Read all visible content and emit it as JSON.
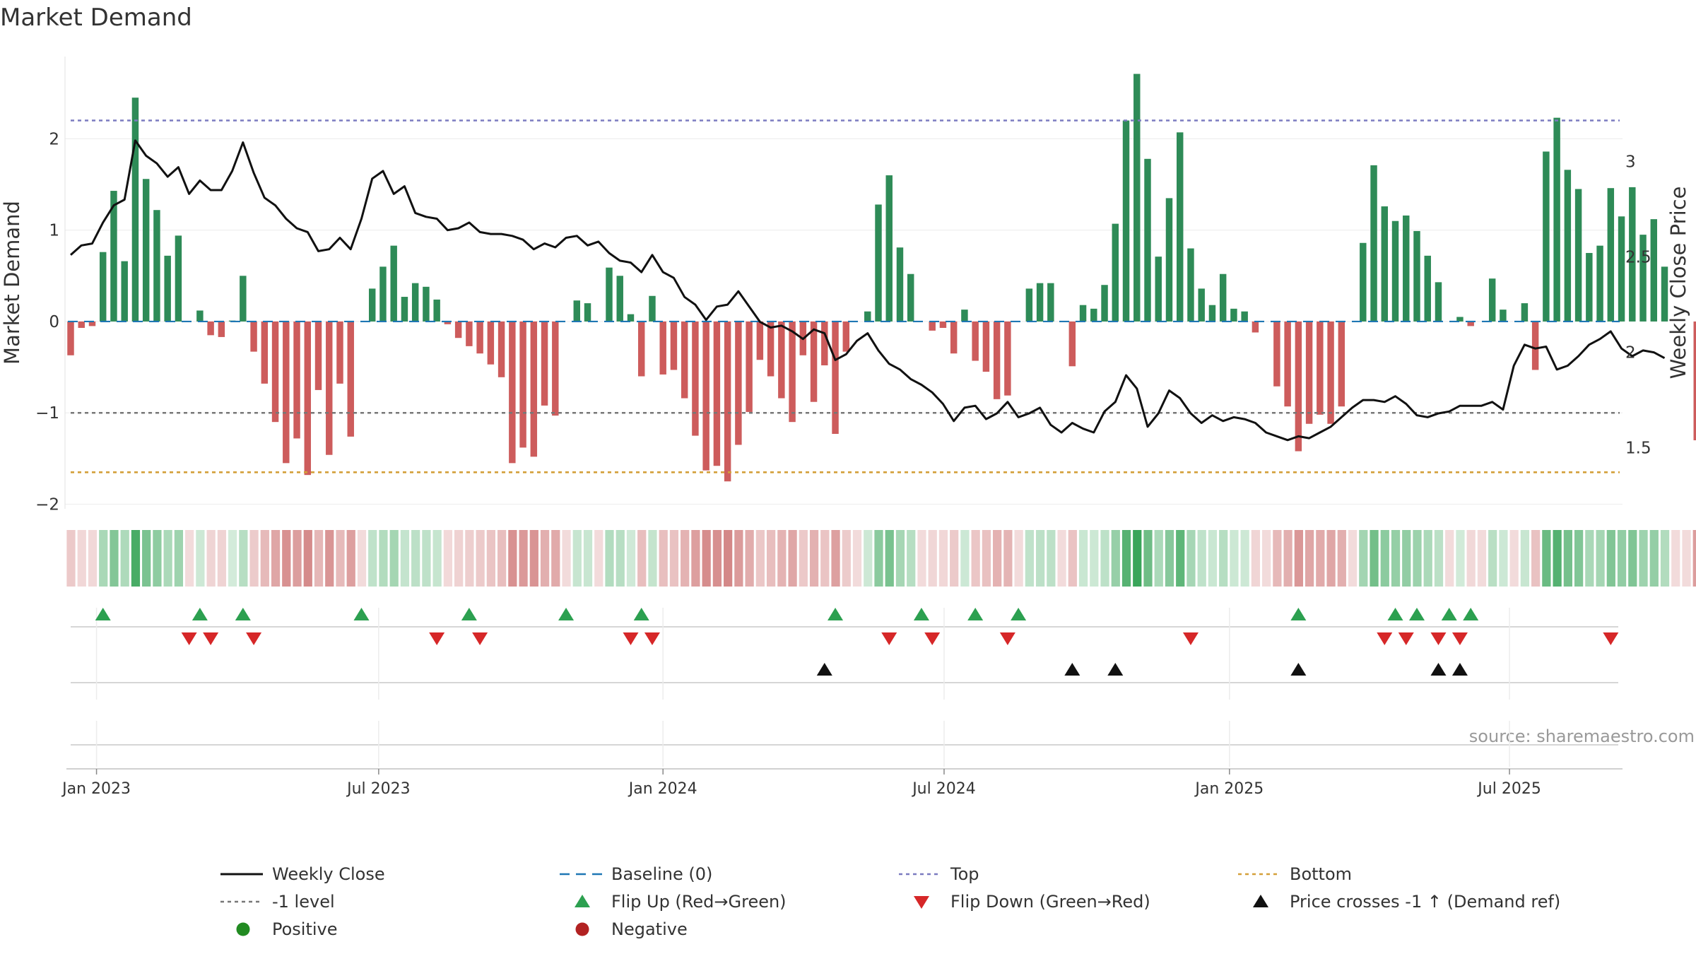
{
  "chart_data": {
    "type": "bar",
    "title": "Market Demand",
    "ylabel_left": "Market Demand",
    "ylabel_right": "Weekly Close Price",
    "ylim_left": [
      -2.05,
      2.9
    ],
    "ylim_right": [
      1.18,
      3.55
    ],
    "yticks_left": [
      {
        "v": 2,
        "label": "2"
      },
      {
        "v": 1,
        "label": "1"
      },
      {
        "v": 0,
        "label": "0"
      },
      {
        "v": -1,
        "label": "−1"
      },
      {
        "v": -2,
        "label": "−2"
      }
    ],
    "yticks_right": [
      {
        "v": 3,
        "label": "3"
      },
      {
        "v": 2.5,
        "label": "2.5"
      },
      {
        "v": 2,
        "label": "2"
      },
      {
        "v": 1.5,
        "label": "1.5"
      }
    ],
    "x_start": "2022-12-19",
    "weeks": 145,
    "x_ticks": [
      {
        "week": 2.4,
        "label": "Jan 2023"
      },
      {
        "week": 28.6,
        "label": "Jul 2023"
      },
      {
        "week": 55.0,
        "label": "Jan 2024"
      },
      {
        "week": 81.1,
        "label": "Jul 2024"
      },
      {
        "week": 107.6,
        "label": "Jan 2025"
      },
      {
        "week": 133.6,
        "label": "Jul 2025"
      }
    ],
    "reference_lines": {
      "top": 2.2,
      "bottom": -1.65,
      "minus_one": -1.0,
      "baseline": 0
    },
    "demand": [
      -0.37,
      -0.07,
      -0.05,
      0.76,
      1.43,
      0.66,
      2.45,
      1.56,
      1.22,
      0.72,
      0.94,
      0,
      0.12,
      -0.15,
      -0.17,
      0.01,
      0.5,
      -0.33,
      -0.68,
      -1.1,
      -1.55,
      -1.28,
      -1.68,
      -0.75,
      -1.46,
      -0.68,
      -1.26,
      0,
      0.36,
      0.6,
      0.83,
      0.27,
      0.42,
      0.38,
      0.24,
      -0.03,
      -0.18,
      -0.27,
      -0.35,
      -0.47,
      -0.61,
      -1.55,
      -1.38,
      -1.48,
      -0.92,
      -1.03,
      0,
      0.23,
      0.2,
      0,
      0.59,
      0.5,
      0.08,
      -0.6,
      0.28,
      -0.58,
      -0.53,
      -0.84,
      -1.25,
      -1.63,
      -1.58,
      -1.75,
      -1.35,
      -0.99,
      -0.42,
      -0.6,
      -0.84,
      -1.1,
      -0.37,
      -0.88,
      -0.48,
      -1.23,
      -0.33,
      0,
      0.11,
      1.28,
      1.6,
      0.81,
      0.52,
      0,
      -0.1,
      -0.07,
      -0.35,
      0.13,
      -0.43,
      -0.55,
      -0.85,
      -0.81,
      0,
      0.36,
      0.42,
      0.42,
      0,
      -0.49,
      0.18,
      0.14,
      0.4,
      1.07,
      2.2,
      2.71,
      1.78,
      0.71,
      1.35,
      2.07,
      0.8,
      0.36,
      0.18,
      0.52,
      0.14,
      0.11,
      -0.12,
      0,
      -0.71,
      -0.93,
      -1.42,
      -1.12,
      -1.02,
      -1.12,
      -0.93,
      0,
      0.86,
      1.71,
      1.26,
      1.1,
      1.16,
      0.99,
      0.72,
      0.43,
      0,
      0.05,
      -0.05,
      0,
      0.47,
      0.13,
      0,
      0.2,
      -0.53,
      1.86,
      2.23,
      1.66,
      1.45,
      0.75,
      0.83,
      1.46,
      1.15,
      1.47,
      0.95,
      1.12,
      0.6,
      0,
      0,
      -1.3
    ],
    "price": [
      2.51,
      2.56,
      2.57,
      2.68,
      2.77,
      2.8,
      3.11,
      3.03,
      2.99,
      2.92,
      2.97,
      2.83,
      2.9,
      2.85,
      2.85,
      2.95,
      3.1,
      2.94,
      2.81,
      2.77,
      2.7,
      2.65,
      2.63,
      2.53,
      2.54,
      2.6,
      2.54,
      2.7,
      2.91,
      2.95,
      2.83,
      2.87,
      2.73,
      2.71,
      2.7,
      2.64,
      2.65,
      2.68,
      2.63,
      2.62,
      2.62,
      2.61,
      2.59,
      2.54,
      2.57,
      2.55,
      2.6,
      2.61,
      2.56,
      2.58,
      2.52,
      2.48,
      2.47,
      2.42,
      2.51,
      2.42,
      2.39,
      2.29,
      2.25,
      2.17,
      2.24,
      2.25,
      2.32,
      2.24,
      2.16,
      2.13,
      2.14,
      2.11,
      2.07,
      2.12,
      2.1,
      1.96,
      1.99,
      2.06,
      2.1,
      2.01,
      1.94,
      1.91,
      1.86,
      1.83,
      1.79,
      1.73,
      1.64,
      1.71,
      1.72,
      1.65,
      1.68,
      1.74,
      1.66,
      1.68,
      1.71,
      1.62,
      1.58,
      1.63,
      1.6,
      1.58,
      1.69,
      1.74,
      1.88,
      1.81,
      1.61,
      1.68,
      1.8,
      1.76,
      1.68,
      1.63,
      1.67,
      1.64,
      1.66,
      1.65,
      1.63,
      1.58,
      1.56,
      1.54,
      1.56,
      1.55,
      1.58,
      1.61,
      1.66,
      1.71,
      1.75,
      1.75,
      1.74,
      1.77,
      1.73,
      1.67,
      1.66,
      1.68,
      1.69,
      1.72,
      1.72,
      1.72,
      1.74,
      1.7,
      1.93,
      2.04,
      2.02,
      2.03,
      1.91,
      1.93,
      1.98,
      2.04,
      2.07,
      2.11,
      2.02,
      1.98,
      2.01,
      2.0,
      1.97
    ],
    "flip_up_weeks": [
      3,
      12,
      16,
      27,
      37,
      46,
      53,
      71,
      79,
      84,
      88,
      114,
      123,
      125,
      128,
      130
    ],
    "flip_down_weeks": [
      11,
      13,
      17,
      34,
      38,
      52,
      54,
      76,
      80,
      87,
      104,
      122,
      124,
      127,
      129,
      143
    ],
    "price_cross_weeks": [
      70,
      93,
      97,
      114,
      127,
      129
    ],
    "source": "source: sharemaestro.com",
    "colors": {
      "positive": "#2e8b57",
      "negative": "#cd5c5c",
      "price": "#111111",
      "top": "#7b7bc0",
      "bottom": "#d4a03a",
      "minus_one": "#777777",
      "baseline": "#1f77b4",
      "flip_up": "#2ca050",
      "flip_down": "#d62728",
      "cross": "#111111",
      "legend_positive": "#228b22",
      "legend_negative": "#b22222"
    },
    "legend": [
      {
        "key": "weekly-close",
        "label": "Weekly Close",
        "symbol": "line",
        "color": "#111111"
      },
      {
        "key": "baseline",
        "label": "Baseline (0)",
        "symbol": "dash",
        "color": "#1f77b4"
      },
      {
        "key": "top",
        "label": "Top",
        "symbol": "dot",
        "color": "#7b7bc0"
      },
      {
        "key": "bottom",
        "label": "Bottom",
        "symbol": "dot",
        "color": "#d4a03a"
      },
      {
        "key": "minus-one-level",
        "label": "-1 level",
        "symbol": "dot",
        "color": "#777777"
      },
      {
        "key": "flip-up",
        "label": "Flip Up (Red→Green)",
        "symbol": "tri-up",
        "color": "#2ca050"
      },
      {
        "key": "flip-down",
        "label": "Flip Down (Green→Red)",
        "symbol": "tri-down",
        "color": "#d62728"
      },
      {
        "key": "price-cross",
        "label": "Price crosses -1 ↑ (Demand ref)",
        "symbol": "tri-up",
        "color": "#111111"
      },
      {
        "key": "positive",
        "label": "Positive",
        "symbol": "circle",
        "color": "#228b22"
      },
      {
        "key": "negative",
        "label": "Negative",
        "symbol": "circle",
        "color": "#b22222"
      }
    ]
  }
}
